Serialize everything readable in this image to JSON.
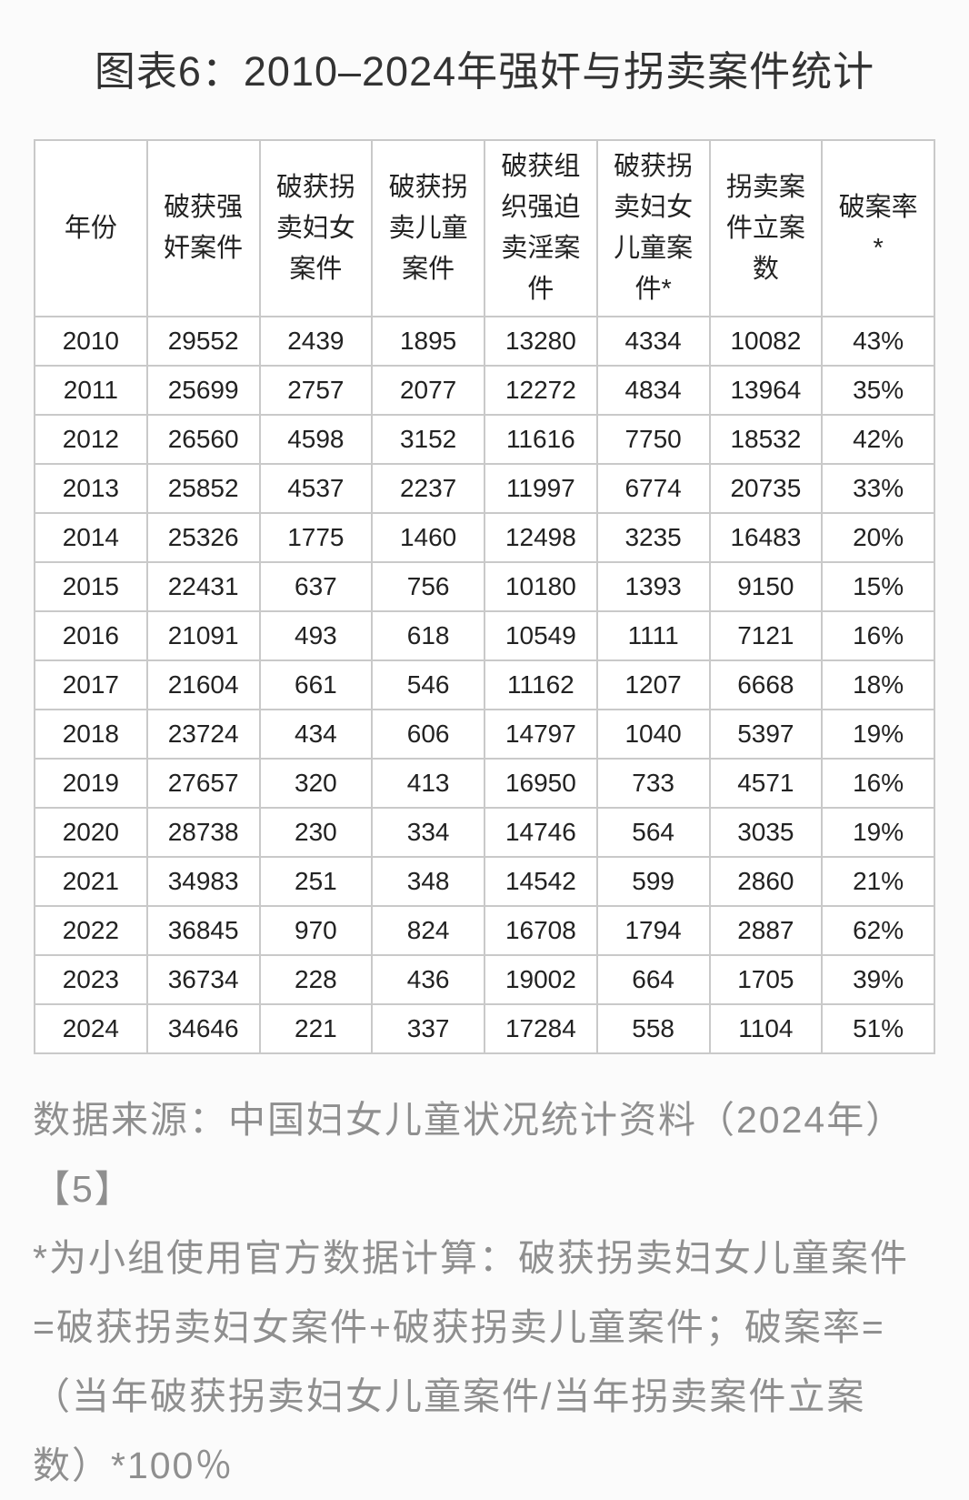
{
  "title": "图表6：2010–2024年强奸与拐卖案件统计",
  "chart_data": {
    "type": "table",
    "title": "图表6：2010–2024年强奸与拐卖案件统计",
    "columns": [
      "年份",
      "破获强奸案件",
      "破获拐卖妇女案件",
      "破获拐卖儿童案件",
      "破获组织强迫卖淫案件",
      "破获拐卖妇女儿童案件*",
      "拐卖案件立案数",
      "破案率*"
    ],
    "rows": [
      [
        "2010",
        "29552",
        "2439",
        "1895",
        "13280",
        "4334",
        "10082",
        "43%"
      ],
      [
        "2011",
        "25699",
        "2757",
        "2077",
        "12272",
        "4834",
        "13964",
        "35%"
      ],
      [
        "2012",
        "26560",
        "4598",
        "3152",
        "11616",
        "7750",
        "18532",
        "42%"
      ],
      [
        "2013",
        "25852",
        "4537",
        "2237",
        "11997",
        "6774",
        "20735",
        "33%"
      ],
      [
        "2014",
        "25326",
        "1775",
        "1460",
        "12498",
        "3235",
        "16483",
        "20%"
      ],
      [
        "2015",
        "22431",
        "637",
        "756",
        "10180",
        "1393",
        "9150",
        "15%"
      ],
      [
        "2016",
        "21091",
        "493",
        "618",
        "10549",
        "1111",
        "7121",
        "16%"
      ],
      [
        "2017",
        "21604",
        "661",
        "546",
        "11162",
        "1207",
        "6668",
        "18%"
      ],
      [
        "2018",
        "23724",
        "434",
        "606",
        "14797",
        "1040",
        "5397",
        "19%"
      ],
      [
        "2019",
        "27657",
        "320",
        "413",
        "16950",
        "733",
        "4571",
        "16%"
      ],
      [
        "2020",
        "28738",
        "230",
        "334",
        "14746",
        "564",
        "3035",
        "19%"
      ],
      [
        "2021",
        "34983",
        "251",
        "348",
        "14542",
        "599",
        "2860",
        "21%"
      ],
      [
        "2022",
        "36845",
        "970",
        "824",
        "16708",
        "1794",
        "2887",
        "62%"
      ],
      [
        "2023",
        "36734",
        "228",
        "436",
        "19002",
        "664",
        "1705",
        "39%"
      ],
      [
        "2024",
        "34646",
        "221",
        "337",
        "17284",
        "558",
        "1104",
        "51%"
      ]
    ]
  },
  "notes": {
    "lines": [
      "数据来源：中国妇女儿童状况统计资料（2024年）",
      "【5】",
      "*为小组使用官方数据计算：破获拐卖妇女儿童案件",
      "=破获拐卖妇女案件+破获拐卖儿童案件；破案率=",
      "（当年破获拐卖妇女儿童案件/当年拐卖案件立案",
      "数）*100％"
    ]
  },
  "colors": {
    "page_bg": "#fbfbfb",
    "table_bg": "#ffffff",
    "table_border_inner": "#c9c9c9",
    "table_border_outer": "#aeaeae",
    "text_main": "#222222",
    "text_title": "#333333",
    "text_note": "#8f8f8f"
  }
}
